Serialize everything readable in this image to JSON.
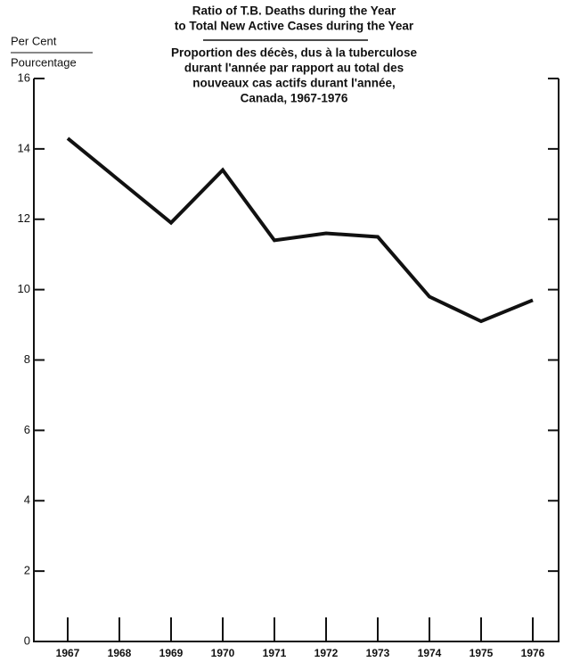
{
  "chart_data": {
    "type": "line",
    "title": [
      "Ratio of T.B. Deaths during the Year",
      "to Total New Active Cases during the Year"
    ],
    "subtitle": [
      "Proportion des décès, dus à la tuberculose",
      "durant l'année par rapport au total des",
      "nouveaux cas actifs durant l'année,",
      "Canada, 1967-1976"
    ],
    "ylabel": [
      "Per Cent",
      "Pourcentage"
    ],
    "categories": [
      "1967",
      "1968",
      "1969",
      "1970",
      "1971",
      "1972",
      "1973",
      "1974",
      "1975",
      "1976"
    ],
    "values": [
      14.3,
      13.1,
      11.9,
      13.4,
      11.4,
      11.6,
      11.5,
      9.8,
      9.1,
      9.7
    ],
    "color": "#111111",
    "ylim": [
      0,
      16
    ],
    "yticks": [
      0,
      2,
      4,
      6,
      8,
      10,
      12,
      14,
      16
    ]
  }
}
